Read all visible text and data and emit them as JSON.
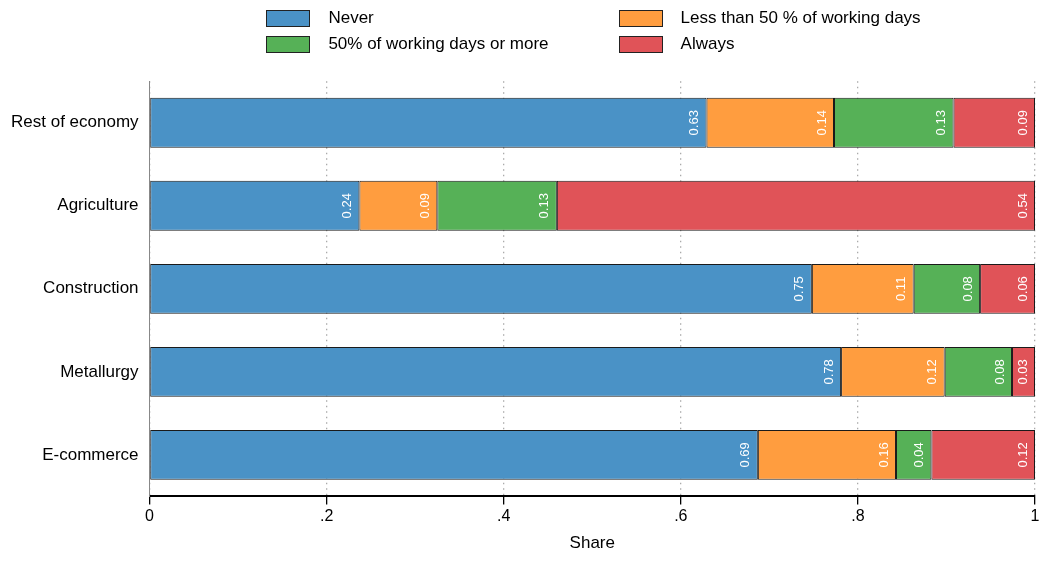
{
  "chart_data": {
    "type": "bar",
    "orientation": "horizontal",
    "stacked": true,
    "xlabel": "Share",
    "categories": [
      "Rest of economy",
      "Agriculture",
      "Construction",
      "Metallurgy",
      "E-commerce"
    ],
    "series": [
      {
        "name": "Never",
        "color": "#4a92c6",
        "values": [
          0.629,
          0.237,
          0.748,
          0.781,
          0.687
        ],
        "value_labels": [
          "0.63",
          "0.24",
          "0.75",
          "0.78",
          "0.69"
        ]
      },
      {
        "name": "Less than 50 % of working days",
        "color": "#ff9d3f",
        "values": [
          0.144,
          0.088,
          0.115,
          0.117,
          0.156
        ],
        "value_labels": [
          "0.14",
          "0.09",
          "0.11",
          "0.12",
          "0.16"
        ]
      },
      {
        "name": "50% of working days or more",
        "color": "#56b157",
        "values": [
          0.135,
          0.135,
          0.075,
          0.076,
          0.04
        ],
        "value_labels": [
          "0.13",
          "0.13",
          "0.08",
          "0.08",
          "0.04"
        ]
      },
      {
        "name": "Always",
        "color": "#e05358",
        "values": [
          0.092,
          0.54,
          0.062,
          0.026,
          0.117
        ],
        "value_labels": [
          "0.09",
          "0.54",
          "0.06",
          "0.03",
          "0.12"
        ]
      }
    ],
    "xlim": [
      0,
      1
    ],
    "xticks": [
      0,
      {
        "value": 0.2,
        "label": ".2"
      },
      {
        "value": 0.4,
        "label": ".4"
      },
      {
        "value": 0.6,
        "label": ".6"
      },
      {
        "value": 0.8,
        "label": ".8"
      },
      1
    ],
    "grid": "x",
    "legend": "top"
  }
}
